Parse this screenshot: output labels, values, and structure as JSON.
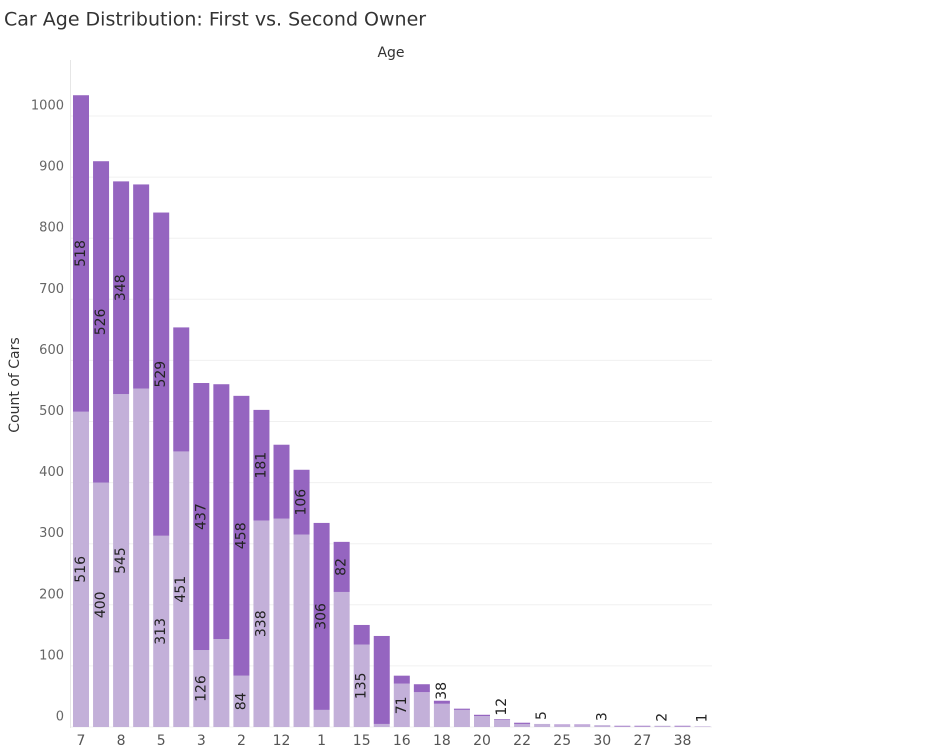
{
  "chart_data": {
    "type": "stacked_bar",
    "title": "Car Age Distribution: First vs. Second Owner",
    "header": "Age",
    "y_label": "Count of Cars",
    "categories": [
      "7",
      null,
      "8",
      null,
      "5",
      null,
      "3",
      null,
      "2",
      null,
      "12",
      null,
      "1",
      null,
      "15",
      null,
      "16",
      null,
      "18",
      null,
      "20",
      null,
      "22",
      null,
      "25",
      null,
      "30",
      null,
      "27",
      null,
      "38",
      null
    ],
    "series": [
      {
        "color": "#c3b0d9",
        "values": [
          516,
          400,
          545,
          554,
          313,
          451,
          126,
          144,
          84,
          338,
          341,
          315,
          28,
          221,
          135,
          5,
          71,
          57,
          38,
          28,
          18,
          12,
          5,
          5,
          3,
          3,
          3,
          1,
          1,
          2,
          1,
          1
        ],
        "value_labels": [
          "516",
          "400",
          "545",
          null,
          "313",
          "451",
          "126",
          null,
          "84",
          "338",
          null,
          null,
          null,
          null,
          "135",
          null,
          "71",
          null,
          "38",
          null,
          null,
          "12",
          null,
          "5",
          null,
          null,
          "3",
          null,
          null,
          "2",
          null,
          "1"
        ]
      },
      {
        "color": "#9565c0",
        "values": [
          518,
          526,
          348,
          334,
          529,
          203,
          437,
          417,
          458,
          181,
          121,
          106,
          306,
          82,
          32,
          144,
          13,
          13,
          5,
          2,
          2,
          1,
          2,
          0,
          1,
          1,
          0,
          1,
          1,
          0,
          1,
          0
        ],
        "value_labels": [
          "518",
          "526",
          "348",
          null,
          "529",
          null,
          "437",
          null,
          "458",
          "181",
          null,
          "106",
          "306",
          "82",
          null,
          null,
          null,
          null,
          null,
          null,
          null,
          null,
          null,
          null,
          null,
          null,
          null,
          null,
          null,
          null,
          null,
          null
        ]
      }
    ],
    "ylim": [
      0,
      1000
    ],
    "yticks": [
      0,
      100,
      200,
      300,
      400,
      500,
      600,
      700,
      800,
      900,
      1000
    ],
    "grid": true
  }
}
